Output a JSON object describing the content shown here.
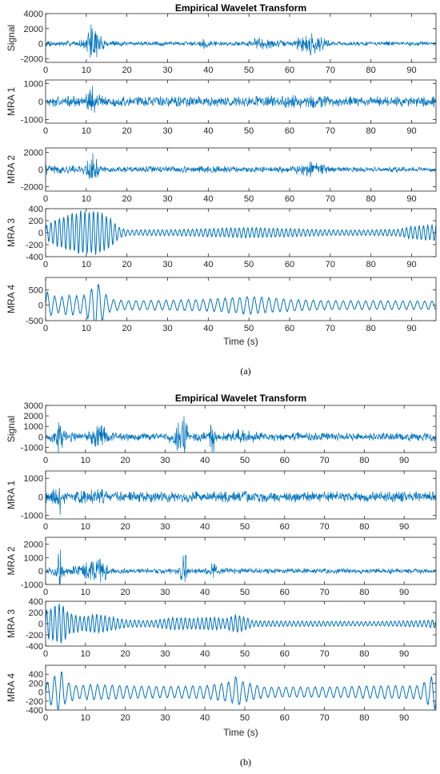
{
  "chart_data": [
    {
      "type": "line",
      "title": "Empirical Wavelet Transform",
      "caption": "(a)",
      "xlabel": "Time (s)",
      "xlim": [
        0,
        96
      ],
      "x_ticks": [
        0,
        10,
        20,
        30,
        40,
        50,
        60,
        70,
        80,
        90
      ],
      "color": "#0072BD",
      "panels": [
        {
          "ylabel": "Signal",
          "ylim": [
            -2500,
            4000
          ],
          "y_ticks": [
            -2000,
            0,
            2000,
            4000
          ],
          "envelope": {
            "x": [
              0,
              2,
              8,
              10.5,
              11,
              12,
              13,
              15,
              20,
              27,
              37,
              39,
              40,
              45,
              50,
              52,
              60,
              66,
              70,
              80,
              90,
              96
            ],
            "amp": [
              700,
              400,
              350,
              1200,
              4000,
              2500,
              1400,
              400,
              300,
              300,
              300,
              900,
              400,
              300,
              350,
              900,
              300,
              1800,
              300,
              300,
              300,
              300
            ]
          }
        },
        {
          "ylabel": "MRA 1",
          "ylim": [
            -1200,
            1200
          ],
          "y_ticks": [
            -1000,
            0,
            1000
          ],
          "envelope": {
            "x": [
              0,
              9,
              10.5,
              11,
              12,
              13,
              15,
              30,
              50,
              66,
              70,
              96
            ],
            "amp": [
              300,
              300,
              900,
              1100,
              800,
              500,
              300,
              300,
              300,
              400,
              300,
              300
            ]
          }
        },
        {
          "ylabel": "MRA 2",
          "ylim": [
            -2500,
            2500
          ],
          "y_ticks": [
            -2000,
            0,
            2000
          ],
          "envelope": {
            "x": [
              0,
              2,
              9,
              10.5,
              11,
              12,
              13,
              15,
              25,
              40,
              50,
              60,
              66,
              70,
              96
            ],
            "amp": [
              700,
              500,
              400,
              1400,
              2500,
              1600,
              900,
              300,
              400,
              400,
              350,
              400,
              1000,
              300,
              300
            ]
          }
        },
        {
          "ylabel": "MRA 3",
          "ylim": [
            -400,
            400
          ],
          "y_ticks": [
            -400,
            -200,
            0,
            200,
            400
          ],
          "envelope": {
            "x": [
              0,
              3,
              6,
              9,
              13,
              16,
              18,
              20,
              30,
              40,
              50,
              60,
              70,
              80,
              87,
              90,
              96
            ],
            "amp": [
              120,
              260,
              330,
              380,
              370,
              250,
              100,
              50,
              50,
              70,
              90,
              70,
              50,
              50,
              60,
              110,
              140
            ]
          }
        },
        {
          "ylabel": "MRA 4",
          "ylim": [
            -500,
            900
          ],
          "y_ticks": [
            -500,
            0,
            500
          ],
          "envelope": {
            "x": [
              0,
              0.8,
              3,
              6,
              9,
              11,
              12.5,
              14,
              16,
              20,
              30,
              40,
              50,
              60,
              70,
              80,
              96
            ],
            "amp": [
              500,
              400,
              250,
              350,
              300,
              500,
              900,
              500,
              200,
              150,
              170,
              200,
              300,
              200,
              150,
              150,
              140
            ]
          }
        }
      ]
    },
    {
      "type": "line",
      "title": "Empirical Wavelet Transform",
      "caption": "(b)",
      "xlabel": "Time (s)",
      "xlim": [
        0,
        98
      ],
      "x_ticks": [
        0,
        10,
        20,
        30,
        40,
        50,
        60,
        70,
        80,
        90
      ],
      "color": "#0072BD",
      "panels": [
        {
          "ylabel": "Signal",
          "ylim": [
            -1500,
            3000
          ],
          "y_ticks": [
            -1000,
            0,
            1000,
            2000,
            3000
          ],
          "envelope": {
            "x": [
              0,
              3,
              3.5,
              4,
              5,
              10,
              14.5,
              16,
              30,
              34.5,
              35,
              36,
              41,
              42,
              43,
              47,
              48,
              55,
              96,
              98
            ],
            "amp": [
              400,
              900,
              2800,
              1500,
              500,
              400,
              1400,
              400,
              400,
              1800,
              2300,
              400,
              500,
              2300,
              400,
              600,
              800,
              400,
              400,
              600
            ]
          }
        },
        {
          "ylabel": "MRA 1",
          "ylim": [
            -1200,
            1400
          ],
          "y_ticks": [
            -1000,
            0,
            1000
          ],
          "envelope": {
            "x": [
              0,
              3,
              3.5,
              4,
              5,
              14.5,
              16,
              98
            ],
            "amp": [
              350,
              500,
              1200,
              600,
              300,
              500,
              300,
              300
            ]
          }
        },
        {
          "ylabel": "MRA 2",
          "ylim": [
            -1000,
            2500
          ],
          "y_ticks": [
            -1000,
            0,
            1000,
            2000
          ],
          "envelope": {
            "x": [
              0,
              3,
              3.5,
              4,
              5,
              14.5,
              16,
              33,
              34.5,
              35,
              36,
              41.5,
              42,
              43,
              48,
              50,
              98
            ],
            "amp": [
              250,
              500,
              2400,
              800,
              200,
              1200,
              200,
              200,
              1100,
              1600,
              200,
              300,
              1500,
              200,
              300,
              200,
              200
            ]
          }
        },
        {
          "ylabel": "MRA 3",
          "ylim": [
            -400,
            400
          ],
          "y_ticks": [
            -400,
            -200,
            0,
            200,
            400
          ],
          "envelope": {
            "x": [
              0,
              2,
              4,
              6,
              9,
              13,
              17,
              20,
              27,
              32,
              37,
              42,
              45,
              48,
              52,
              60,
              70,
              80,
              95,
              98
            ],
            "amp": [
              260,
              320,
              380,
              200,
              130,
              180,
              120,
              70,
              60,
              120,
              100,
              120,
              90,
              180,
              60,
              50,
              50,
              40,
              60,
              80
            ]
          }
        },
        {
          "ylabel": "MRA 4",
          "ylim": [
            -400,
            600
          ],
          "y_ticks": [
            -400,
            -200,
            0,
            200,
            400
          ],
          "envelope": {
            "x": [
              0,
              2,
              4,
              5,
              8,
              12,
              20,
              30,
              40,
              47,
              48,
              49,
              55,
              70,
              85,
              94,
              96,
              98
            ],
            "amp": [
              200,
              350,
              500,
              250,
              150,
              180,
              150,
              130,
              150,
              250,
              400,
              250,
              120,
              120,
              150,
              150,
              300,
              400
            ]
          }
        }
      ]
    }
  ]
}
